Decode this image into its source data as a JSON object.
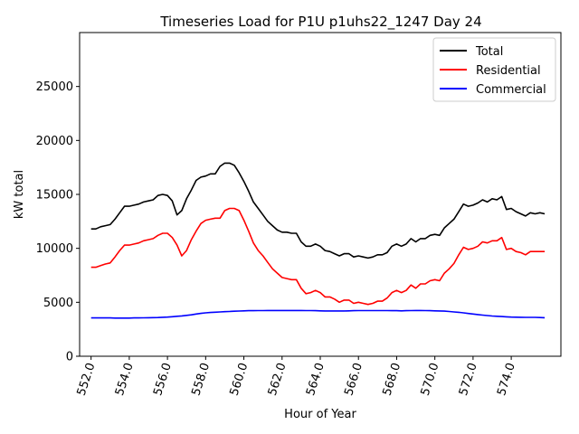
{
  "chart_data": {
    "type": "line",
    "title": "Timeseries Load for P1U p1uhs22_1247  Day 24",
    "xlabel": "Hour of Year",
    "ylabel": "kW total",
    "xlim": [
      551.4,
      576.6
    ],
    "ylim": [
      0,
      30000
    ],
    "xticks": [
      552,
      554,
      556,
      558,
      560,
      562,
      564,
      566,
      568,
      570,
      572,
      574
    ],
    "xtick_labels": [
      "552.0",
      "554.0",
      "556.0",
      "558.0",
      "560.0",
      "562.0",
      "564.0",
      "566.0",
      "568.0",
      "570.0",
      "572.0",
      "574.0"
    ],
    "yticks": [
      0,
      5000,
      10000,
      15000,
      20000,
      25000
    ],
    "ytick_labels": [
      "0",
      "5000",
      "10000",
      "15000",
      "20000",
      "25000"
    ],
    "grid": false,
    "legend_position": "top-right",
    "x": [
      552,
      552.25,
      552.5,
      552.75,
      553,
      553.25,
      553.5,
      553.75,
      554,
      554.25,
      554.5,
      554.75,
      555,
      555.25,
      555.5,
      555.75,
      556,
      556.25,
      556.5,
      556.75,
      557,
      557.25,
      557.5,
      557.75,
      558,
      558.25,
      558.5,
      558.75,
      559,
      559.25,
      559.5,
      559.75,
      560,
      560.25,
      560.5,
      560.75,
      561,
      561.25,
      561.5,
      561.75,
      562,
      562.25,
      562.5,
      562.75,
      563,
      563.25,
      563.5,
      563.75,
      564,
      564.25,
      564.5,
      564.75,
      565,
      565.25,
      565.5,
      565.75,
      566,
      566.25,
      566.5,
      566.75,
      567,
      567.25,
      567.5,
      567.75,
      568,
      568.25,
      568.5,
      568.75,
      569,
      569.25,
      569.5,
      569.75,
      570,
      570.25,
      570.5,
      570.75,
      571,
      571.25,
      571.5,
      571.75,
      572,
      572.25,
      572.5,
      572.75,
      573,
      573.25,
      573.5,
      573.75,
      574,
      574.25,
      574.5,
      574.75,
      575,
      575.25,
      575.5,
      575.75
    ],
    "series": [
      {
        "name": "Total",
        "color": "#000000",
        "values": [
          11800,
          11800,
          12000,
          12100,
          12200,
          12700,
          13300,
          13900,
          13900,
          14000,
          14100,
          14300,
          14400,
          14500,
          14900,
          15000,
          14900,
          14400,
          13100,
          13500,
          14600,
          15400,
          16300,
          16600,
          16700,
          16900,
          16900,
          17600,
          17900,
          17900,
          17700,
          17000,
          16200,
          15300,
          14300,
          13700,
          13100,
          12500,
          12100,
          11700,
          11500,
          11500,
          11400,
          11400,
          10600,
          10200,
          10200,
          10400,
          10200,
          9800,
          9700,
          9500,
          9300,
          9500,
          9500,
          9200,
          9300,
          9200,
          9100,
          9200,
          9400,
          9400,
          9600,
          10200,
          10400,
          10200,
          10400,
          10900,
          10600,
          10900,
          10900,
          11200,
          11300,
          11200,
          11900,
          12300,
          12700,
          13400,
          14100,
          13900,
          14000,
          14200,
          14500,
          14300,
          14600,
          14500,
          14800,
          13600,
          13700,
          13400,
          13200,
          13000,
          13300,
          13200,
          13300,
          13200
        ]
      },
      {
        "name": "Residential",
        "color": "#ff0000",
        "values": [
          8250,
          8250,
          8400,
          8550,
          8650,
          9200,
          9800,
          10300,
          10300,
          10400,
          10500,
          10700,
          10800,
          10900,
          11200,
          11400,
          11400,
          11000,
          10300,
          9300,
          9800,
          10800,
          11600,
          12300,
          12600,
          12700,
          12800,
          12800,
          13500,
          13700,
          13700,
          13500,
          12600,
          11600,
          10500,
          9800,
          9300,
          8700,
          8100,
          7700,
          7300,
          7200,
          7100,
          7100,
          6300,
          5800,
          5900,
          6100,
          5900,
          5500,
          5500,
          5300,
          5000,
          5200,
          5200,
          4900,
          5000,
          4900,
          4800,
          4900,
          5100,
          5100,
          5400,
          5900,
          6100,
          5900,
          6100,
          6600,
          6300,
          6700,
          6700,
          7000,
          7100,
          7000,
          7700,
          8100,
          8600,
          9400,
          10100,
          9900,
          10000,
          10200,
          10600,
          10500,
          10700,
          10700,
          11000,
          9900,
          10000,
          9700,
          9600,
          9400,
          9700,
          9700,
          9700,
          9700
        ]
      },
      {
        "name": "Commercial",
        "color": "#0000ff",
        "values": [
          3550,
          3550,
          3550,
          3550,
          3550,
          3540,
          3540,
          3540,
          3540,
          3550,
          3550,
          3560,
          3570,
          3580,
          3590,
          3610,
          3630,
          3660,
          3700,
          3740,
          3790,
          3840,
          3910,
          3970,
          4020,
          4060,
          4080,
          4110,
          4130,
          4150,
          4170,
          4190,
          4210,
          4220,
          4220,
          4230,
          4230,
          4240,
          4240,
          4240,
          4240,
          4240,
          4240,
          4240,
          4240,
          4230,
          4230,
          4220,
          4210,
          4200,
          4200,
          4200,
          4200,
          4200,
          4210,
          4220,
          4230,
          4230,
          4230,
          4230,
          4230,
          4230,
          4230,
          4220,
          4220,
          4210,
          4220,
          4230,
          4240,
          4240,
          4230,
          4220,
          4210,
          4200,
          4180,
          4150,
          4110,
          4070,
          4020,
          3960,
          3910,
          3860,
          3810,
          3770,
          3730,
          3700,
          3680,
          3650,
          3630,
          3620,
          3610,
          3600,
          3600,
          3600,
          3590,
          3570
        ]
      }
    ]
  }
}
